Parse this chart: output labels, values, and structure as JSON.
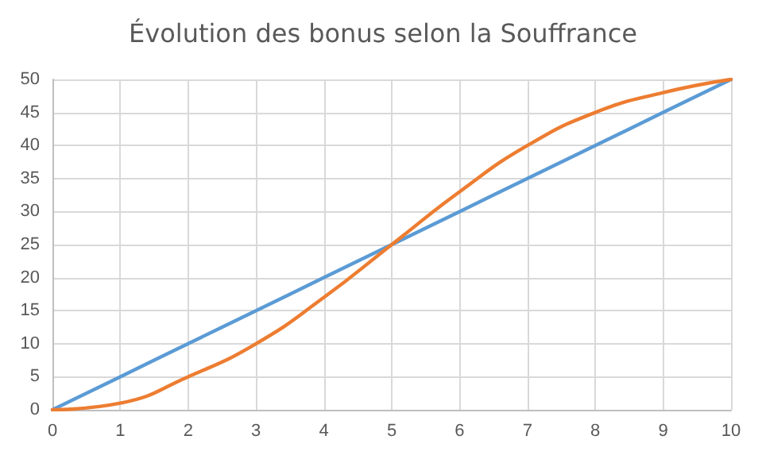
{
  "chart_data": {
    "type": "line",
    "title": "Évolution des bonus selon la Souffrance",
    "x": [
      0,
      1,
      2,
      3,
      4,
      5,
      6,
      7,
      8,
      9,
      10
    ],
    "series": [
      {
        "color": "#5b9bd5",
        "values": [
          0,
          5,
          10,
          15,
          20,
          25,
          30,
          35,
          40,
          45,
          50
        ]
      },
      {
        "color": "#ed7d31",
        "values": [
          0,
          1,
          5,
          10,
          17,
          25,
          33,
          40,
          45,
          48,
          50
        ]
      }
    ],
    "xlim": [
      0,
      10
    ],
    "xticks": [
      0,
      1,
      2,
      3,
      4,
      5,
      6,
      7,
      8,
      9,
      10
    ],
    "ylim": [
      0,
      50
    ],
    "yticks": [
      0,
      5,
      10,
      15,
      20,
      25,
      30,
      35,
      40,
      45,
      50
    ],
    "grid": true,
    "marker": "none",
    "line_style": "solid"
  }
}
